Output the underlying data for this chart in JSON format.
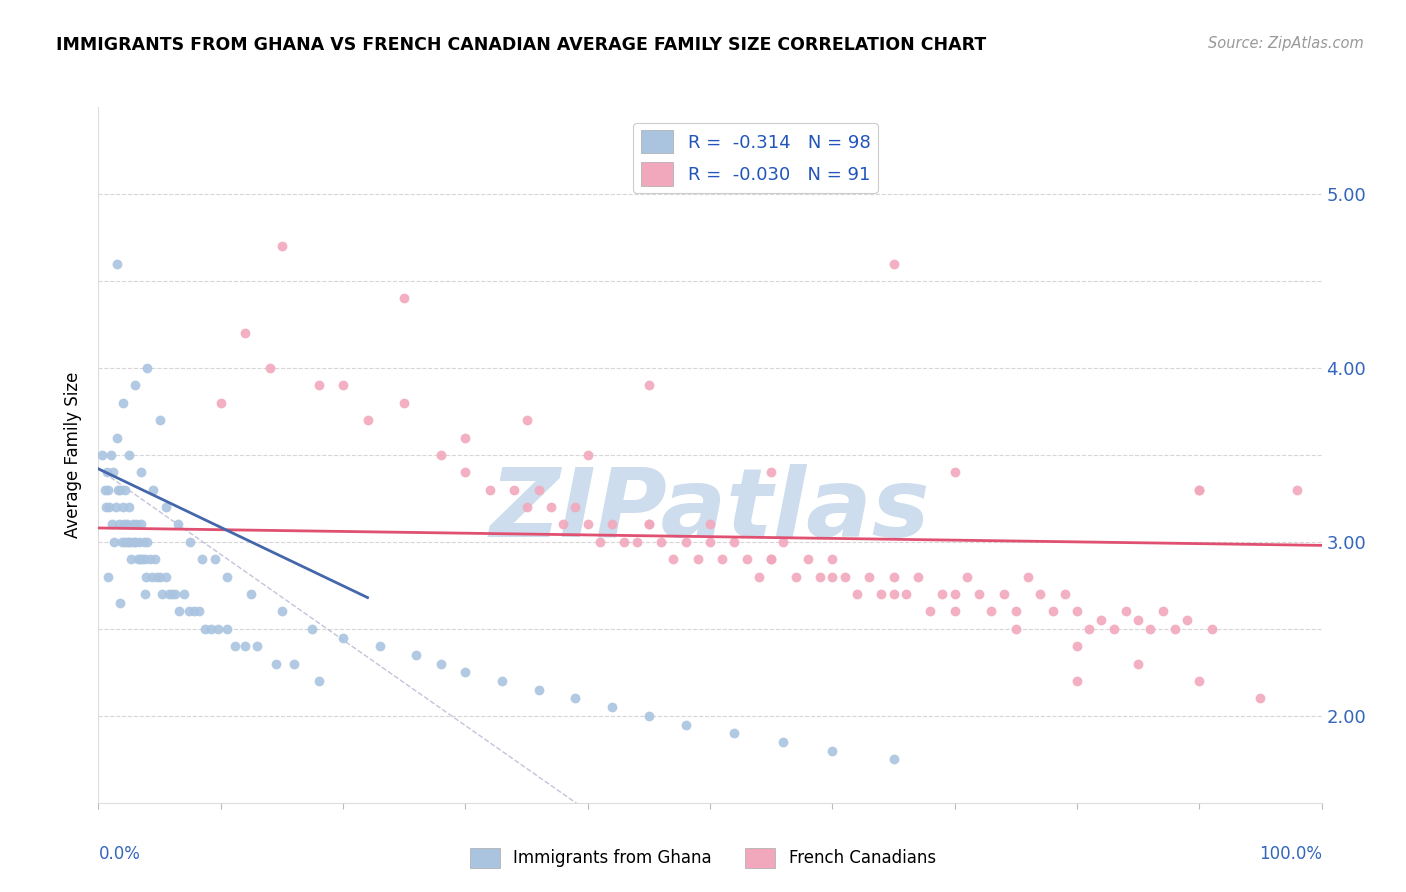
{
  "title": "IMMIGRANTS FROM GHANA VS FRENCH CANADIAN AVERAGE FAMILY SIZE CORRELATION CHART",
  "source": "Source: ZipAtlas.com",
  "ylabel": "Average Family Size",
  "ylim": [
    1.5,
    5.5
  ],
  "xlim": [
    0.0,
    100.0
  ],
  "yticks_right": [
    2.0,
    3.0,
    4.0,
    5.0
  ],
  "legend_text": [
    "R =  -0.314   N = 98",
    "R =  -0.030   N = 91"
  ],
  "blue_color": "#aac4e0",
  "pink_color": "#f2a8bc",
  "watermark": "ZIPatlas",
  "watermark_color": "#cddded",
  "blue_trendline_x": [
    0.0,
    22.0
  ],
  "blue_trendline_y": [
    3.42,
    2.68
  ],
  "pink_trendline_x": [
    0.0,
    100.0
  ],
  "pink_trendline_y": [
    3.08,
    2.98
  ],
  "dashed_line_x": [
    0.0,
    100.0
  ],
  "dashed_line_y": [
    3.42,
    -1.5
  ],
  "ghana_scatter_x": [
    0.3,
    0.5,
    0.6,
    0.7,
    0.8,
    0.9,
    1.0,
    1.1,
    1.2,
    1.3,
    1.4,
    1.5,
    1.6,
    1.7,
    1.8,
    1.9,
    2.0,
    2.1,
    2.2,
    2.3,
    2.4,
    2.5,
    2.6,
    2.7,
    2.8,
    2.9,
    3.0,
    3.1,
    3.2,
    3.3,
    3.4,
    3.5,
    3.6,
    3.7,
    3.8,
    3.9,
    4.0,
    4.2,
    4.4,
    4.6,
    4.8,
    5.0,
    5.2,
    5.5,
    5.8,
    6.0,
    6.3,
    6.6,
    7.0,
    7.4,
    7.8,
    8.2,
    8.7,
    9.2,
    9.8,
    10.5,
    11.2,
    12.0,
    13.0,
    14.5,
    16.0,
    18.0,
    2.0,
    3.0,
    4.0,
    5.0,
    1.5,
    2.5,
    3.5,
    4.5,
    5.5,
    6.5,
    7.5,
    8.5,
    9.5,
    10.5,
    12.5,
    15.0,
    17.5,
    20.0,
    23.0,
    26.0,
    28.0,
    30.0,
    33.0,
    36.0,
    39.0,
    42.0,
    45.0,
    48.0,
    52.0,
    56.0,
    60.0,
    65.0,
    2.2,
    1.8,
    0.8,
    3.8
  ],
  "ghana_scatter_y": [
    3.5,
    3.3,
    3.2,
    3.4,
    3.3,
    3.2,
    3.5,
    3.1,
    3.4,
    3.0,
    3.2,
    4.6,
    3.3,
    3.1,
    3.3,
    3.0,
    3.2,
    3.1,
    3.0,
    3.1,
    3.0,
    3.2,
    3.0,
    2.9,
    3.1,
    3.0,
    3.0,
    3.1,
    2.9,
    3.0,
    2.9,
    3.1,
    2.9,
    3.0,
    2.9,
    2.8,
    3.0,
    2.9,
    2.8,
    2.9,
    2.8,
    2.8,
    2.7,
    2.8,
    2.7,
    2.7,
    2.7,
    2.6,
    2.7,
    2.6,
    2.6,
    2.6,
    2.5,
    2.5,
    2.5,
    2.5,
    2.4,
    2.4,
    2.4,
    2.3,
    2.3,
    2.2,
    3.8,
    3.9,
    4.0,
    3.7,
    3.6,
    3.5,
    3.4,
    3.3,
    3.2,
    3.1,
    3.0,
    2.9,
    2.9,
    2.8,
    2.7,
    2.6,
    2.5,
    2.45,
    2.4,
    2.35,
    2.3,
    2.25,
    2.2,
    2.15,
    2.1,
    2.05,
    2.0,
    1.95,
    1.9,
    1.85,
    1.8,
    1.75,
    3.3,
    2.65,
    2.8,
    2.7
  ],
  "french_scatter_x": [
    10.0,
    14.0,
    18.0,
    22.0,
    25.0,
    28.0,
    30.0,
    32.0,
    34.0,
    35.0,
    36.0,
    37.0,
    38.0,
    39.0,
    40.0,
    41.0,
    42.0,
    43.0,
    44.0,
    45.0,
    46.0,
    47.0,
    48.0,
    49.0,
    50.0,
    51.0,
    52.0,
    53.0,
    54.0,
    55.0,
    56.0,
    57.0,
    58.0,
    59.0,
    60.0,
    61.0,
    62.0,
    63.0,
    64.0,
    65.0,
    66.0,
    67.0,
    68.0,
    69.0,
    70.0,
    71.0,
    72.0,
    73.0,
    74.0,
    75.0,
    76.0,
    77.0,
    78.0,
    79.0,
    80.0,
    81.0,
    82.0,
    83.0,
    84.0,
    85.0,
    86.0,
    87.0,
    88.0,
    89.0,
    90.0,
    91.0,
    20.0,
    15.0,
    12.0,
    25.0,
    30.0,
    35.0,
    40.0,
    45.0,
    50.0,
    55.0,
    60.0,
    65.0,
    70.0,
    75.0,
    80.0,
    85.0,
    90.0,
    95.0,
    98.0,
    65.0,
    45.0,
    55.0,
    70.0,
    80.0,
    90.0
  ],
  "french_scatter_y": [
    3.8,
    4.0,
    3.9,
    3.7,
    3.8,
    3.5,
    3.4,
    3.3,
    3.3,
    3.2,
    3.3,
    3.2,
    3.1,
    3.2,
    3.1,
    3.0,
    3.1,
    3.0,
    3.0,
    3.1,
    3.0,
    2.9,
    3.0,
    2.9,
    3.1,
    2.9,
    3.0,
    2.9,
    2.8,
    2.9,
    3.0,
    2.8,
    2.9,
    2.8,
    2.9,
    2.8,
    2.7,
    2.8,
    2.7,
    2.8,
    2.7,
    2.8,
    2.6,
    2.7,
    2.7,
    2.8,
    2.7,
    2.6,
    2.7,
    2.6,
    2.8,
    2.7,
    2.6,
    2.7,
    2.6,
    2.5,
    2.55,
    2.5,
    2.6,
    2.55,
    2.5,
    2.6,
    2.5,
    2.55,
    3.3,
    2.5,
    3.9,
    4.7,
    4.2,
    4.4,
    3.6,
    3.7,
    3.5,
    3.1,
    3.0,
    2.9,
    2.8,
    2.7,
    2.6,
    2.5,
    2.4,
    2.3,
    2.2,
    2.1,
    3.3,
    4.6,
    3.9,
    3.4,
    3.4,
    2.2,
    3.3
  ]
}
